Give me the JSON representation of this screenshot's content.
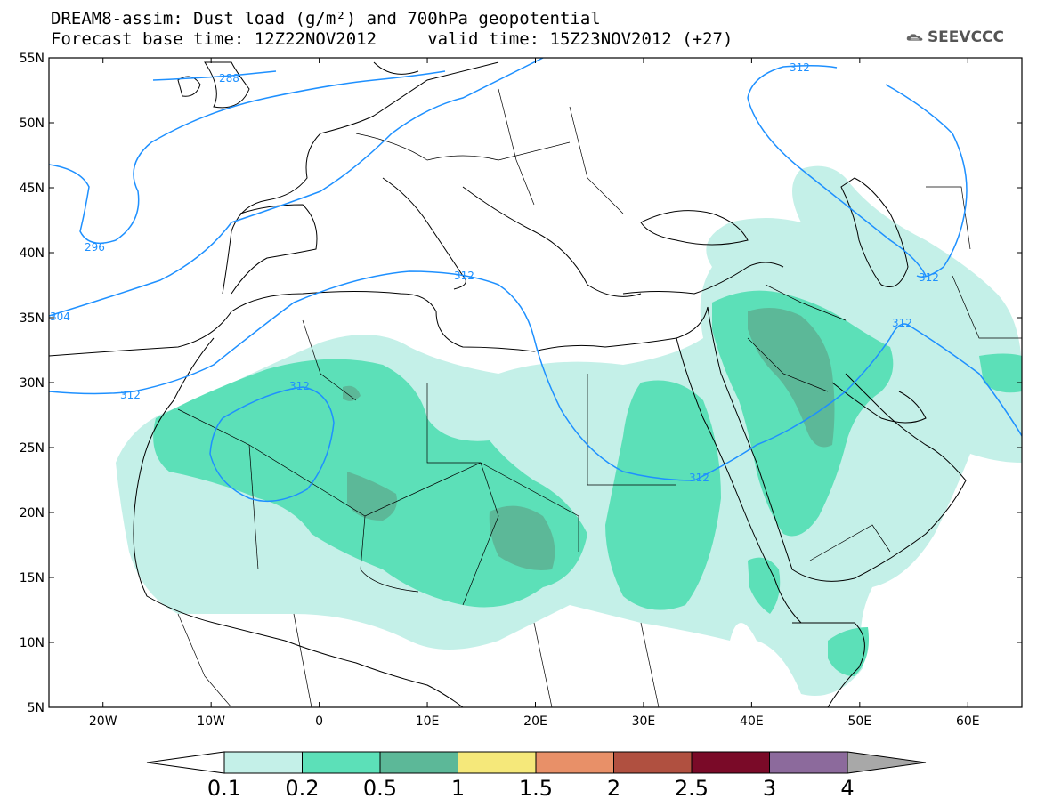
{
  "title": {
    "line1": "DREAM8-assim: Dust load (g/m²) and 700hPa geopotential",
    "line2": "Forecast base time: 12Z22NOV2012     valid time: 15Z23NOV2012 (+27)"
  },
  "logo": {
    "icon": "cloud-icon",
    "text": "SEEVCCC"
  },
  "map": {
    "lon_range": [
      -25,
      65
    ],
    "lat_range": [
      5,
      55
    ],
    "lat_ticks": [
      "55N",
      "50N",
      "45N",
      "40N",
      "35N",
      "30N",
      "25N",
      "20N",
      "15N",
      "10N",
      "5N"
    ],
    "lon_ticks": [
      "20W",
      "10W",
      "0",
      "10E",
      "20E",
      "30E",
      "40E",
      "50E",
      "60E"
    ],
    "contour_color": "#1e90ff",
    "contour_labels": [
      "288",
      "296",
      "304",
      "312",
      "312",
      "312",
      "312",
      "312",
      "312",
      "312"
    ]
  },
  "colorbar": {
    "levels": [
      "0.1",
      "0.2",
      "0.5",
      "1",
      "1.5",
      "2",
      "2.5",
      "3",
      "4"
    ],
    "colors": [
      "#ffffff",
      "#c4f0e8",
      "#5ce0b8",
      "#5cb898",
      "#f5e87a",
      "#e89068",
      "#b05040",
      "#7a0a28",
      "#8c6a9c",
      "#a8a8a8"
    ]
  }
}
